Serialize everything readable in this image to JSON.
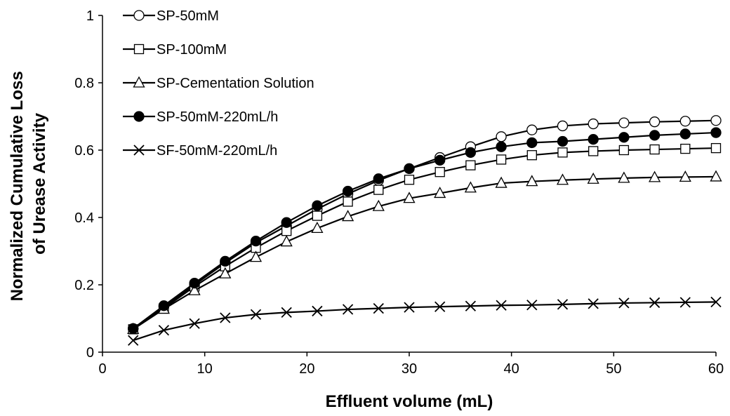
{
  "chart_data": {
    "type": "line",
    "xlabel": "Effluent volume (mL)",
    "ylabel_lines": [
      "Normalized Cumulative Loss",
      "of Urease Activity"
    ],
    "xlim": [
      0,
      60
    ],
    "ylim": [
      0,
      1
    ],
    "x_ticks": [
      "0",
      "10",
      "20",
      "30",
      "40",
      "50",
      "60"
    ],
    "y_ticks": [
      "0",
      "0.2",
      "0.4",
      "0.6",
      "0.8",
      "1"
    ],
    "grid": false,
    "legend_position": "top-left",
    "x": [
      3,
      6,
      9,
      12,
      15,
      18,
      21,
      24,
      27,
      30,
      33,
      36,
      39,
      42,
      45,
      48,
      51,
      54,
      57,
      60
    ],
    "series": [
      {
        "name": "SP-50mM",
        "marker": "open-circle",
        "values": [
          0.07,
          0.135,
          0.2,
          0.265,
          0.325,
          0.375,
          0.425,
          0.47,
          0.51,
          0.545,
          0.578,
          0.61,
          0.64,
          0.66,
          0.672,
          0.678,
          0.681,
          0.684,
          0.686,
          0.688
        ]
      },
      {
        "name": "SP-100mM",
        "marker": "open-square",
        "values": [
          0.068,
          0.13,
          0.195,
          0.255,
          0.31,
          0.36,
          0.405,
          0.447,
          0.482,
          0.512,
          0.535,
          0.555,
          0.572,
          0.585,
          0.593,
          0.597,
          0.6,
          0.602,
          0.604,
          0.606
        ]
      },
      {
        "name": "SP-Cementation Solution",
        "marker": "open-triangle",
        "values": [
          0.068,
          0.128,
          0.183,
          0.233,
          0.282,
          0.328,
          0.368,
          0.403,
          0.433,
          0.457,
          0.472,
          0.488,
          0.502,
          0.507,
          0.511,
          0.514,
          0.517,
          0.519,
          0.52,
          0.521
        ]
      },
      {
        "name": "SP-50mM-220mL/h",
        "marker": "filled-circle",
        "values": [
          0.07,
          0.138,
          0.205,
          0.27,
          0.33,
          0.385,
          0.435,
          0.478,
          0.515,
          0.545,
          0.57,
          0.593,
          0.61,
          0.622,
          0.626,
          0.632,
          0.638,
          0.644,
          0.648,
          0.652
        ]
      },
      {
        "name": "SF-50mM-220mL/h",
        "marker": "x",
        "values": [
          0.035,
          0.065,
          0.085,
          0.102,
          0.112,
          0.118,
          0.122,
          0.127,
          0.13,
          0.133,
          0.135,
          0.137,
          0.139,
          0.14,
          0.142,
          0.144,
          0.146,
          0.147,
          0.148,
          0.149
        ]
      }
    ]
  }
}
